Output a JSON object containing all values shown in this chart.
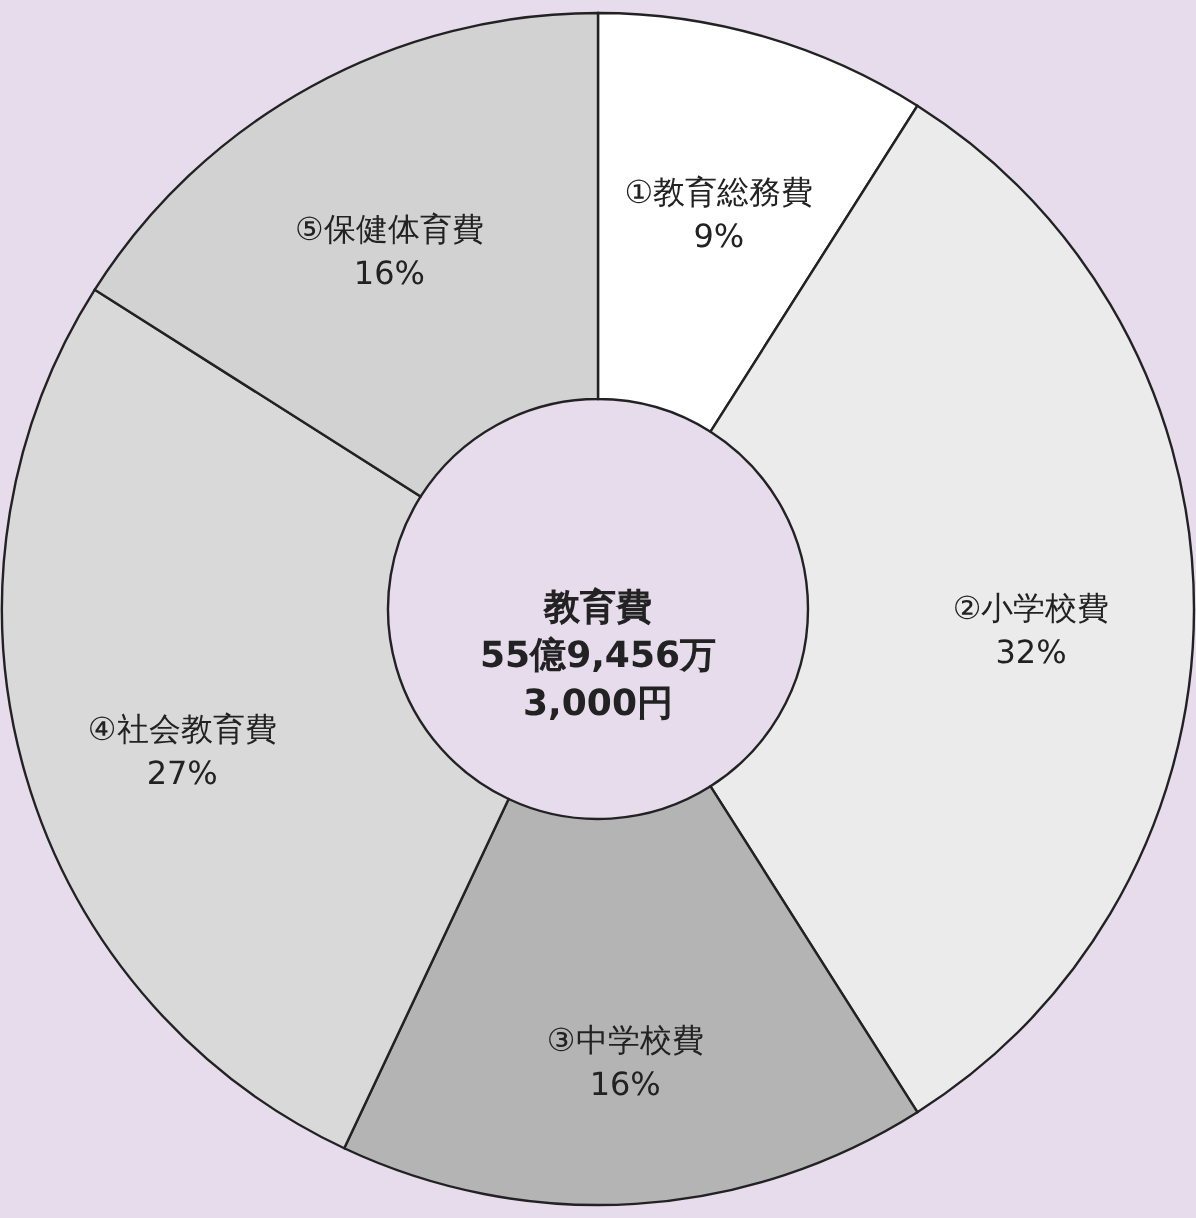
{
  "chart_data": {
    "type": "donut",
    "categories": [
      "①教育総務費",
      "②小学校費",
      "③中学校費",
      "④社会教育費",
      "⑤保健体育費"
    ],
    "values": [
      9,
      32,
      16,
      27,
      16
    ],
    "value_labels": [
      "9%",
      "32%",
      "16%",
      "27%",
      "16%"
    ],
    "colors": [
      "#ffffff",
      "#ebebeb",
      "#b4b4b4",
      "#d9d9d9",
      "#d2d2d2"
    ],
    "annotations": [
      "教育費\n55億9,456万\n3,000円"
    ]
  }
}
